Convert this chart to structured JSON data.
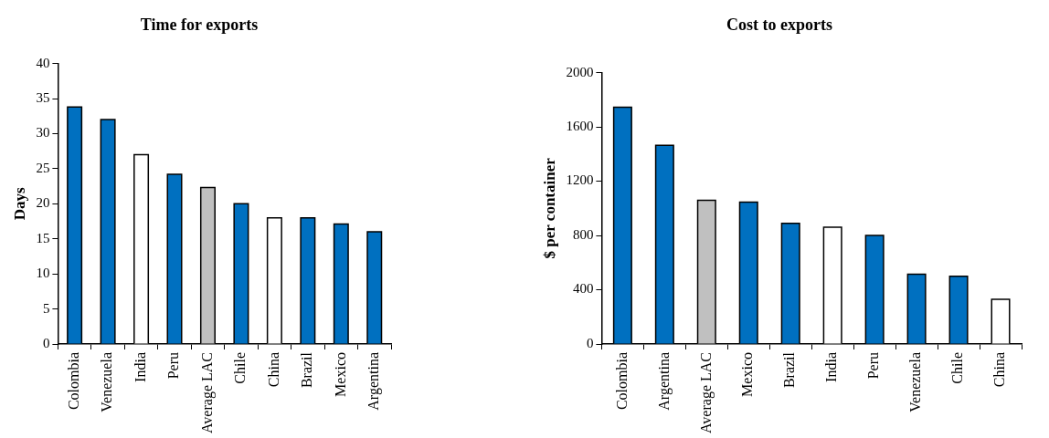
{
  "chart_data": [
    {
      "type": "bar",
      "title": "Time for exports",
      "ylabel": "Days",
      "categories": [
        "Colombia",
        "Venezuela",
        "India",
        "Peru",
        "Average LAC",
        "Chile",
        "China",
        "Brazil",
        "Mexico",
        "Argentina"
      ],
      "values": [
        33.8,
        32,
        27,
        24.2,
        22.3,
        20,
        18,
        18,
        17.1,
        16
      ],
      "colors": [
        "#0070c0",
        "#0070c0",
        "#ffffff",
        "#0070c0",
        "#c0c0c0",
        "#0070c0",
        "#ffffff",
        "#0070c0",
        "#0070c0",
        "#0070c0"
      ],
      "ylim": [
        0,
        40
      ],
      "yticks": [
        0,
        5,
        10,
        15,
        20,
        25,
        30,
        35,
        40
      ]
    },
    {
      "type": "bar",
      "title": "Cost to exports",
      "ylabel": "$ per container",
      "categories": [
        "Colombia",
        "Argentina",
        "Average LAC",
        "Mexico",
        "Brazil",
        "India",
        "Peru",
        "Venezuela",
        "Chile",
        "China"
      ],
      "values": [
        1745,
        1465,
        1060,
        1045,
        890,
        860,
        800,
        515,
        500,
        330
      ],
      "colors": [
        "#0070c0",
        "#0070c0",
        "#c0c0c0",
        "#0070c0",
        "#0070c0",
        "#ffffff",
        "#0070c0",
        "#0070c0",
        "#0070c0",
        "#ffffff"
      ],
      "ylim": [
        0,
        2000
      ],
      "yticks": [
        0,
        400,
        800,
        1200,
        1600,
        2000
      ]
    }
  ]
}
